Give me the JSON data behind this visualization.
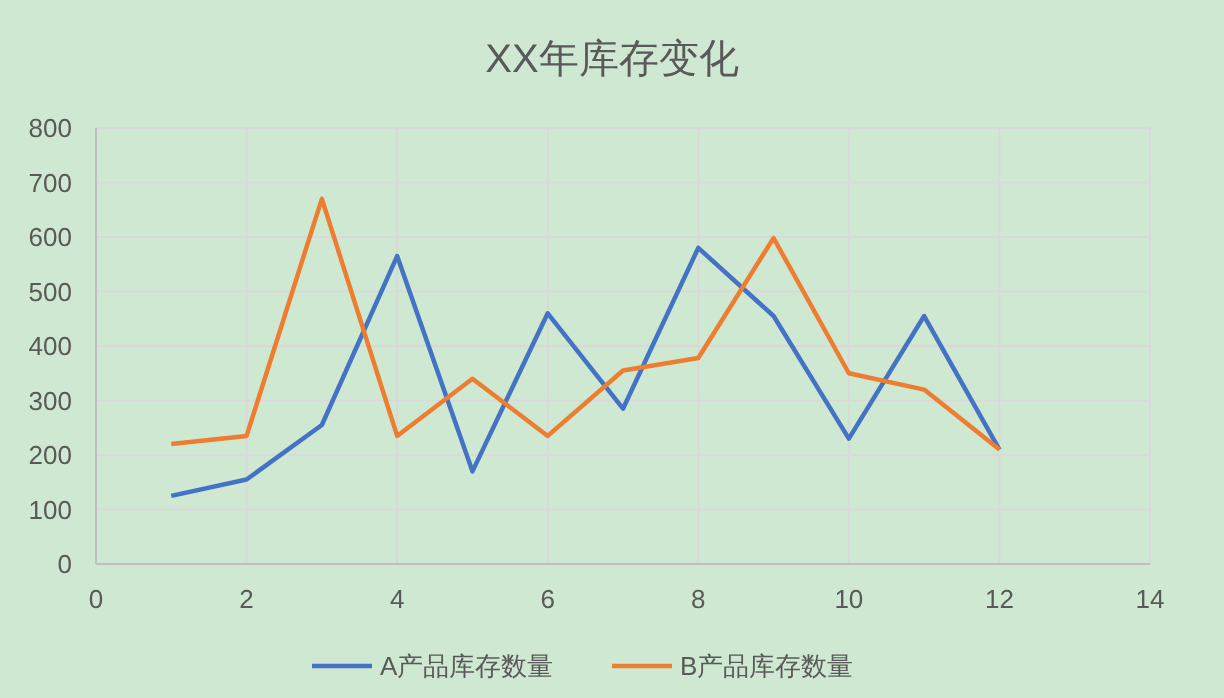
{
  "chart_data": {
    "type": "line",
    "title": "XX年库存变化",
    "x": [
      1,
      2,
      3,
      4,
      5,
      6,
      7,
      8,
      9,
      10,
      11,
      12
    ],
    "series": [
      {
        "name": "A产品库存数量",
        "color": "#4472c4",
        "values": [
          125,
          155,
          255,
          565,
          170,
          460,
          285,
          580,
          455,
          230,
          455,
          210
        ]
      },
      {
        "name": "B产品库存数量",
        "color": "#ed7d31",
        "values": [
          220,
          235,
          670,
          235,
          340,
          235,
          355,
          378,
          598,
          350,
          320,
          210
        ]
      }
    ],
    "xlim": [
      0,
      14
    ],
    "xticks": [
      0,
      2,
      4,
      6,
      8,
      10,
      12,
      14
    ],
    "ylim": [
      0,
      800
    ],
    "yticks": [
      0,
      100,
      200,
      300,
      400,
      500,
      600,
      700,
      800
    ],
    "grid": true,
    "legend": "bottom",
    "marker": "none",
    "line_style": "solid"
  }
}
